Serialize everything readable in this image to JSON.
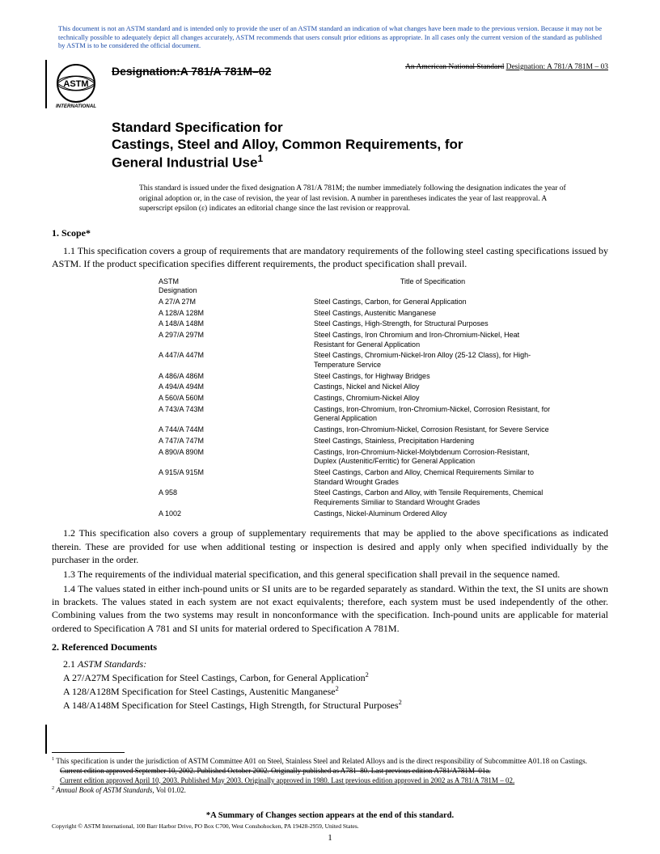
{
  "colors": {
    "disclaimer": "#1a4ba8",
    "text": "#000000",
    "background": "#ffffff"
  },
  "disclaimer": "This document is not an ASTM standard and is intended only to provide the user of an ASTM standard an indication of what changes have been made to the previous version. Because it may not be technically possible to adequately depict all changes accurately, ASTM recommends that users consult prior editions as appropriate. In all cases only the current version of the standard as published by ASTM is to be considered the official document.",
  "logo_label": "INTERNATIONAL",
  "designation_struck": "Designation:A 781/A 781M–02",
  "right_struck": "An American National Standard",
  "right_new": "Designation: A 781/A 781M – 03",
  "title_l1": "Standard Specification for",
  "title_l2": "Castings, Steel and Alloy, Common Requirements, for",
  "title_l3": "General Industrial Use",
  "title_sup": "1",
  "issuance": "This standard is issued under the fixed designation A 781/A 781M; the number immediately following the designation indicates the year of original adoption or, in the case of revision, the year of last revision. A number in parentheses indicates the year of last reapproval. A superscript epsilon (ε) indicates an editorial change since the last revision or reapproval.",
  "scope_head": "1. Scope*",
  "p1_1": "1.1 This specification covers a group of requirements that are mandatory requirements of the following steel casting specifications issued by ASTM. If the product specification specifies different requirements, the product specification shall prevail.",
  "table_h1": "ASTM",
  "table_h1b": "Designation",
  "table_h2": "Title of Specification",
  "specs": [
    {
      "d": "A 27/A 27M",
      "t": "Steel Castings, Carbon, for General Application"
    },
    {
      "d": "A 128/A 128M",
      "t": "Steel Castings, Austenitic Manganese"
    },
    {
      "d": "A 148/A 148M",
      "t": "Steel Castings, High-Strength, for Structural Purposes"
    },
    {
      "d": "A 297/A 297M",
      "t": "Steel Castings, Iron Chromium and Iron-Chromium-Nickel, Heat Resistant for General Application"
    },
    {
      "d": "A 447/A 447M",
      "t": "Steel Castings, Chromium-Nickel-Iron Alloy (25-12 Class), for High-Temperature Service"
    },
    {
      "d": "A 486/A 486M",
      "t": "Steel Castings, for Highway Bridges"
    },
    {
      "d": "A 494/A 494M",
      "t": "Castings, Nickel and Nickel Alloy"
    },
    {
      "d": "A 560/A 560M",
      "t": "Castings, Chromium-Nickel Alloy"
    },
    {
      "d": "A 743/A 743M",
      "t": "Castings, Iron-Chromium, Iron-Chromium-Nickel, Corrosion Resistant, for General Application"
    },
    {
      "d": "A 744/A 744M",
      "t": "Castings, Iron-Chromium-Nickel, Corrosion Resistant, for Severe Service"
    },
    {
      "d": "A 747/A 747M",
      "t": "Steel Castings, Stainless, Precipitation Hardening"
    },
    {
      "d": "A 890/A 890M",
      "t": "Castings, Iron-Chromium-Nickel-Molybdenum Corrosion-Resistant, Duplex (Austenitic/Ferritic) for General Application"
    },
    {
      "d": "A 915/A 915M",
      "t": "Steel Castings, Carbon and Alloy, Chemical Requirements Similar to Standard Wrought Grades"
    },
    {
      "d": "A 958",
      "t": "Steel Castings, Carbon and Alloy, with Tensile Requirements, Chemical Requirements Similiar to Standard Wrought Grades"
    },
    {
      "d": "A 1002",
      "t": "Castings, Nickel-Aluminum Ordered Alloy"
    }
  ],
  "p1_2": "1.2 This specification also covers a group of supplementary requirements that may be applied to the above specifications as indicated therein. These are provided for use when additional testing or inspection is desired and apply only when specified individually by the purchaser in the order.",
  "p1_3": "1.3  The requirements of the individual material specification, and this general specification shall prevail in the sequence named.",
  "p1_4": "1.4 The values stated in either inch-pound units or SI units are to be regarded separately as standard. Within the text, the SI units are shown in brackets. The values stated in each system are not exact equivalents; therefore, each system must be used independently of the other. Combining values from the two systems may result in nonconformance with the specification. Inch-pound units are applicable for material ordered to Specification A 781 and SI units for material ordered to Specification A 781M.",
  "refdocs_head": "2. Referenced Documents",
  "ref_sub": "ASTM Standards:",
  "refs": [
    {
      "d": "A 27/A27M",
      "t": "Specification for Steel Castings, Carbon, for General Application",
      "s": "2"
    },
    {
      "d": "A 128/A128M",
      "t": "Specification for Steel Castings, Austenitic Manganese",
      "s": "2"
    },
    {
      "d": "A 148/A148M",
      "t": "Specification for Steel Castings, High Strength, for Structural Purposes",
      "s": "2"
    }
  ],
  "fn1": "This specification is under the jurisdiction of ASTM Committee A01 on Steel, Stainless Steel and Related Alloys and is the direct responsibility of Subcommittee A01.18 on Castings.",
  "fn_struck": "Current edition approved September 10, 2002. Published October 2002. Originally published as A781–80. Last previous edition A781/A781M–01a.",
  "fn_under": "Current edition approved April 10, 2003. Published May 2003. Originally approved in 1980. Last previous edition approved in 2002 as A 781/A 781M – 02.",
  "fn2": "Annual Book of ASTM Standards",
  "fn2b": ", Vol 01.02.",
  "summary": "*A Summary of Changes section appears at the end of this standard.",
  "copyright": "Copyright © ASTM International, 100 Barr Harbor Drive, PO Box C700, West Conshohocken, PA 19428-2959, United States.",
  "pagenum": "1"
}
